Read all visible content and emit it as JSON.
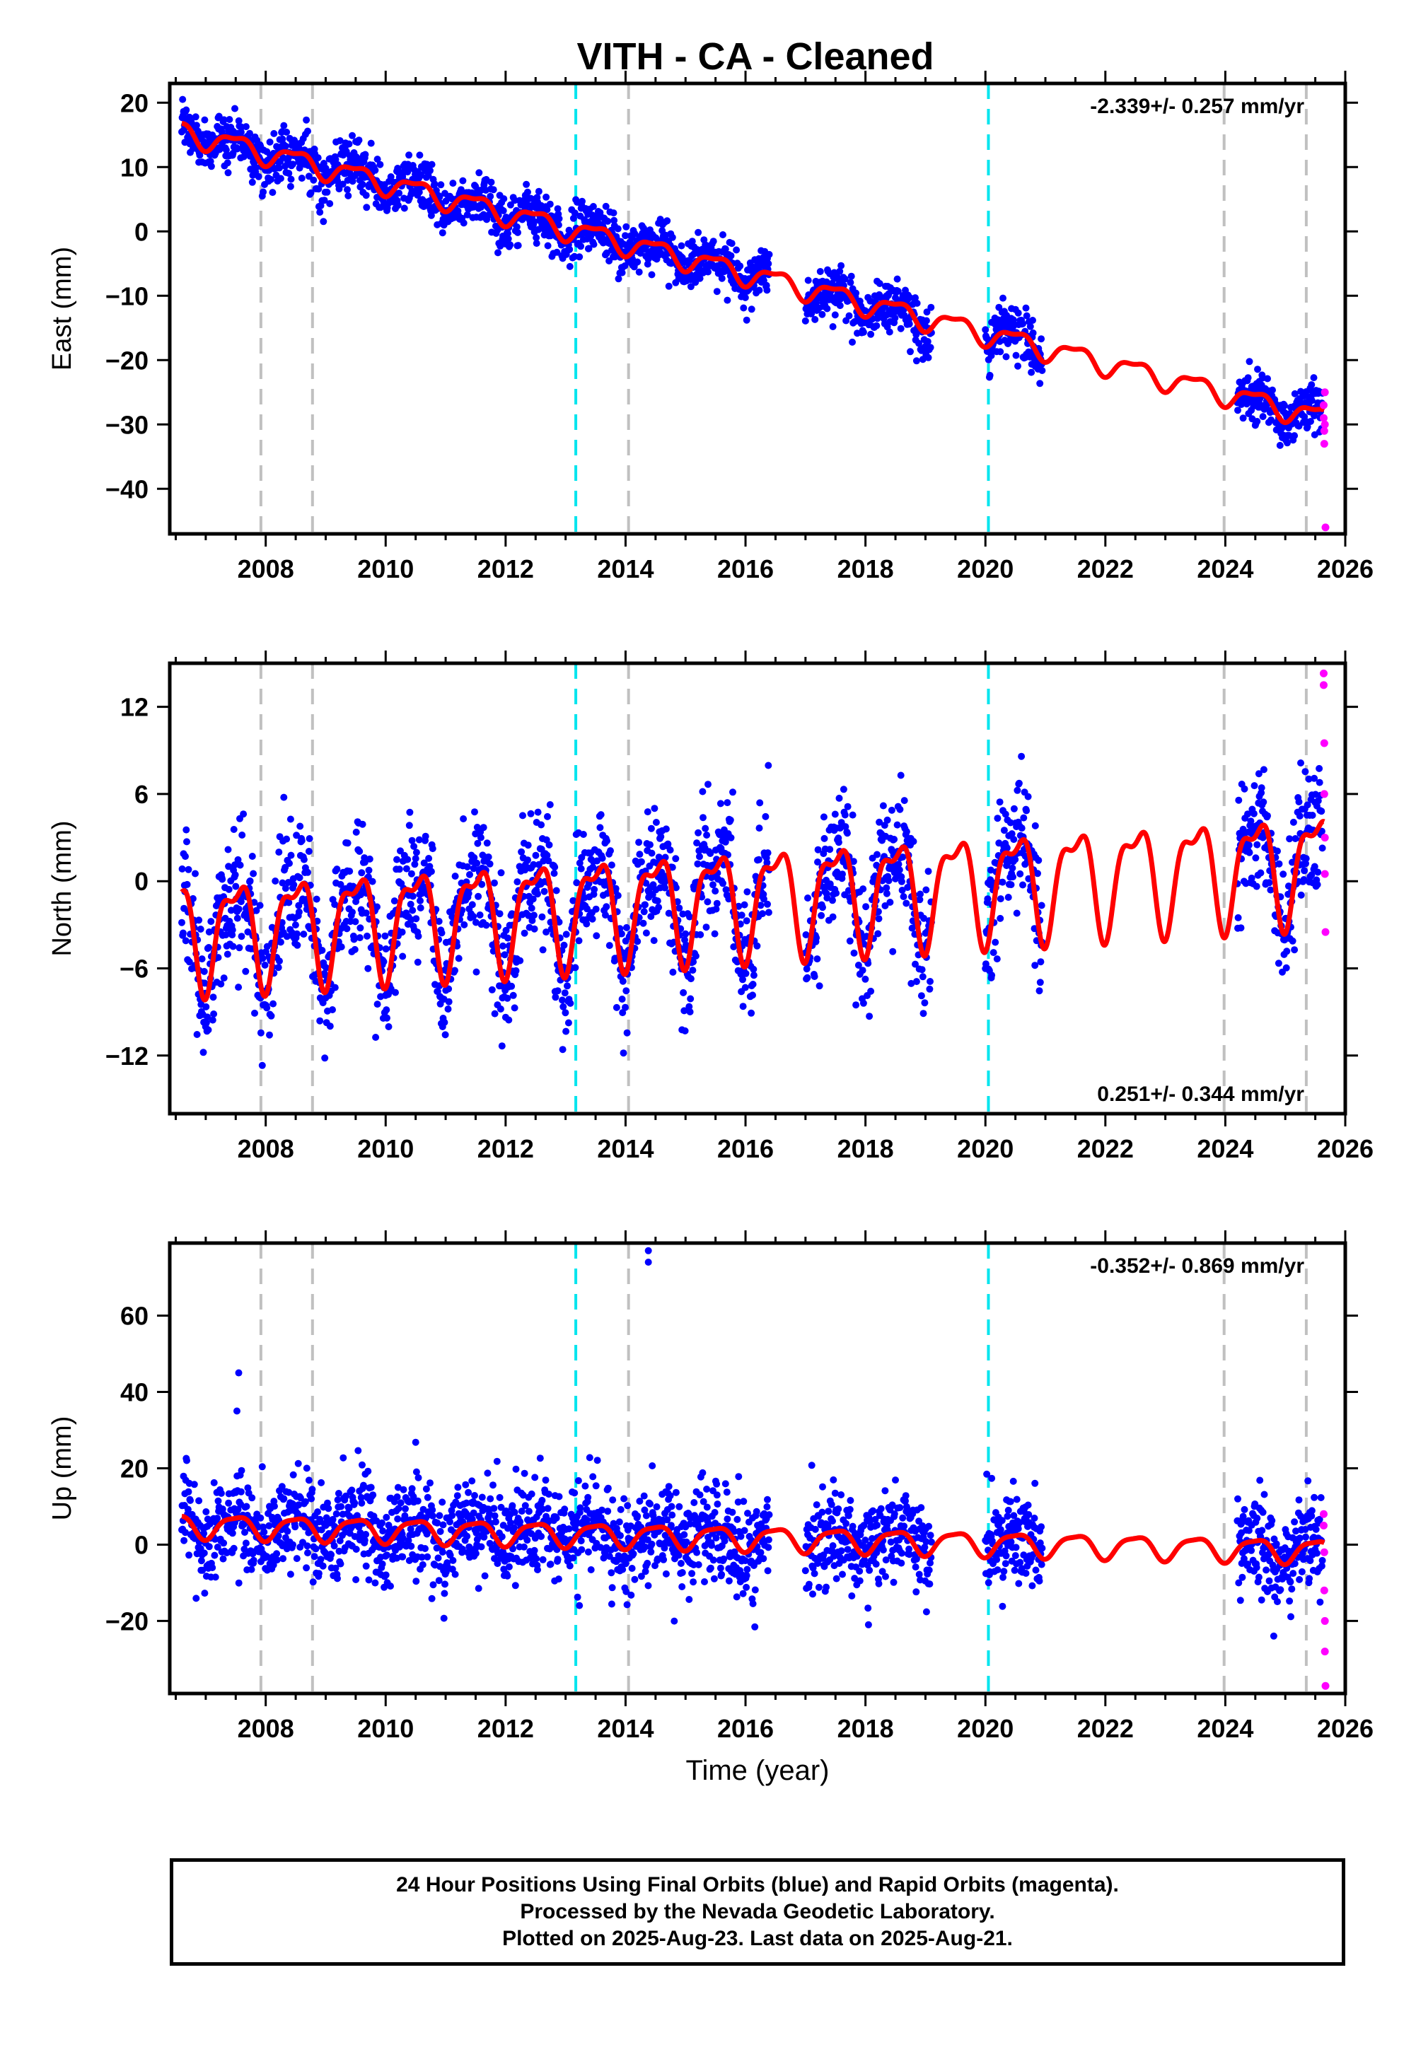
{
  "title": "VITH  - CA - Cleaned",
  "footer": {
    "line1": "24 Hour Positions Using Final Orbits (blue) and Rapid Orbits (magenta).",
    "line2": "Processed by the Nevada Geodetic Laboratory.",
    "line3": "Plotted on 2025-Aug-23. Last data on 2025-Aug-21."
  },
  "colors": {
    "final_orbits": "#0000ff",
    "rapid_orbits": "#ff00ff",
    "model": "#ff0000",
    "equipment_change": "#c0c0c0",
    "earthquake": "#00e5ee"
  },
  "chart_data": [
    {
      "type": "scatter",
      "panel": "east",
      "ylabel": "East (mm)",
      "xlabel": "",
      "xlim": [
        2006.4,
        2026.0
      ],
      "ylim": [
        -47,
        23
      ],
      "yticks": [
        20,
        10,
        0,
        -10,
        -20,
        -30,
        -40
      ],
      "xticks": [
        2008,
        2010,
        2012,
        2014,
        2016,
        2018,
        2020,
        2022,
        2024,
        2026
      ],
      "rate_text": "-2.339+/- 0.257 mm/yr",
      "rate_position": "top-right",
      "trend": {
        "ref_year": 2006.6,
        "ref_value": 15.5,
        "rate": -2.339
      },
      "seasonal": {
        "annual_amp": 1.6,
        "semiannual_amp": 0.6
      },
      "gray_lines": [
        2007.92,
        2008.78,
        2014.05,
        2023.98,
        2025.35
      ],
      "cyan_lines": [
        2013.17,
        2020.05
      ],
      "data_segments": [
        [
          2006.6,
          2016.4
        ],
        [
          2017.0,
          2019.1
        ],
        [
          2020.0,
          2020.95
        ],
        [
          2024.2,
          2025.62
        ]
      ],
      "scatter_sigma": 2.0,
      "rapid_points": [
        [
          2025.64,
          -27
        ],
        [
          2025.64,
          -29
        ],
        [
          2025.65,
          -31
        ],
        [
          2025.65,
          -33
        ],
        [
          2025.66,
          -25
        ],
        [
          2025.66,
          -30
        ],
        [
          2025.67,
          -46
        ]
      ]
    },
    {
      "type": "scatter",
      "panel": "north",
      "ylabel": "North (mm)",
      "xlabel": "",
      "xlim": [
        2006.4,
        2026.0
      ],
      "ylim": [
        -16,
        15
      ],
      "yticks": [
        12,
        6,
        0,
        -6,
        -12
      ],
      "xticks": [
        2008,
        2010,
        2012,
        2014,
        2016,
        2018,
        2020,
        2022,
        2024,
        2026
      ],
      "rate_text": "0.251+/- 0.344 mm/yr",
      "rate_position": "bottom-right",
      "trend": {
        "ref_year": 2006.6,
        "ref_value": -3.5,
        "rate": 0.251
      },
      "seasonal": {
        "annual_amp": 3.4,
        "semiannual_amp": 1.4
      },
      "gray_lines": [
        2007.92,
        2008.78,
        2014.05,
        2023.98,
        2025.35
      ],
      "cyan_lines": [
        2013.17,
        2020.05
      ],
      "data_segments": [
        [
          2006.6,
          2016.4
        ],
        [
          2017.0,
          2019.1
        ],
        [
          2020.0,
          2020.95
        ],
        [
          2024.2,
          2025.62
        ]
      ],
      "scatter_sigma": 2.2,
      "rapid_points": [
        [
          2025.64,
          14.3
        ],
        [
          2025.64,
          13.5
        ],
        [
          2025.65,
          9.5
        ],
        [
          2025.65,
          6
        ],
        [
          2025.66,
          3
        ],
        [
          2025.66,
          0.5
        ],
        [
          2025.67,
          -3.5
        ]
      ]
    },
    {
      "type": "scatter",
      "panel": "up",
      "ylabel": "Up (mm)",
      "xlabel": "Time (year)",
      "xlim": [
        2006.4,
        2026.0
      ],
      "ylim": [
        -39,
        79
      ],
      "yticks": [
        60,
        40,
        20,
        0,
        -20
      ],
      "xticks": [
        2008,
        2010,
        2012,
        2014,
        2016,
        2018,
        2020,
        2022,
        2024,
        2026
      ],
      "rate_text": "-0.352+/- 0.869 mm/yr",
      "rate_position": "top-right",
      "trend": {
        "ref_year": 2006.6,
        "ref_value": 5.0,
        "rate": -0.352
      },
      "seasonal": {
        "annual_amp": 3.0,
        "semiannual_amp": 0.8
      },
      "gray_lines": [
        2007.92,
        2008.78,
        2014.05,
        2023.98,
        2025.35
      ],
      "cyan_lines": [
        2013.17,
        2020.05
      ],
      "data_segments": [
        [
          2006.6,
          2016.4
        ],
        [
          2017.0,
          2019.1
        ],
        [
          2020.0,
          2020.95
        ],
        [
          2024.2,
          2025.62
        ]
      ],
      "scatter_sigma": 6.5,
      "outliers": [
        [
          2007.55,
          45
        ],
        [
          2007.52,
          35
        ],
        [
          2014.38,
          74
        ],
        [
          2014.38,
          77
        ]
      ],
      "rapid_points": [
        [
          2025.64,
          8
        ],
        [
          2025.64,
          5
        ],
        [
          2025.65,
          -2
        ],
        [
          2025.65,
          -12
        ],
        [
          2025.66,
          -20
        ],
        [
          2025.66,
          -28
        ],
        [
          2025.67,
          -37
        ]
      ]
    }
  ]
}
